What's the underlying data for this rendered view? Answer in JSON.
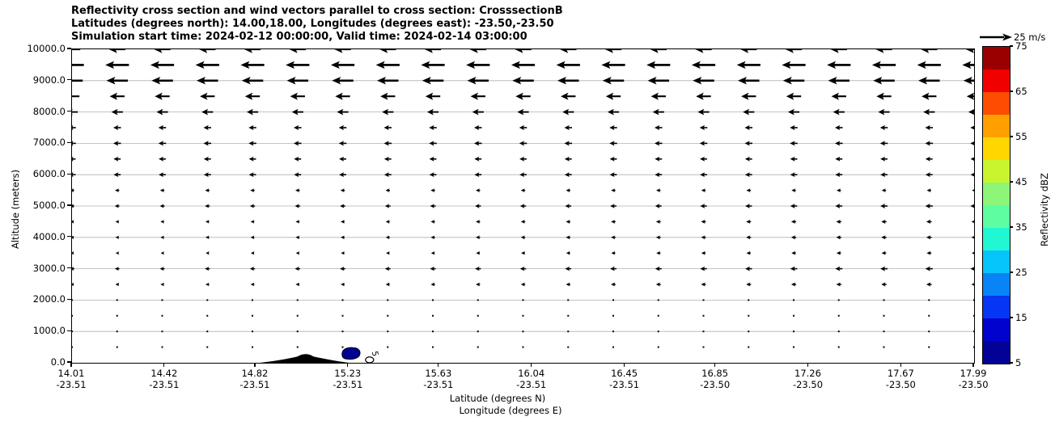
{
  "figure": {
    "title_line1": "Reflectivity cross section and wind vectors parallel to cross section: CrosssectionB",
    "title_line2": "Latitudes (degrees north): 14.00,18.00, Longitudes (degrees east): -23.50,-23.50",
    "title_line3": "Simulation start time: 2024-02-12 00:00:00, Valid time: 2024-02-14 03:00:00"
  },
  "y_axis": {
    "label": "Altitude (meters)",
    "min": 0,
    "max": 10000,
    "tick_labels": [
      "0.0",
      "1000.0",
      "2000.0",
      "3000.0",
      "4000.0",
      "5000.0",
      "6000.0",
      "7000.0",
      "8000.0",
      "9000.0",
      "10000.0"
    ]
  },
  "x_axis": {
    "label_line1": "Latitude (degrees N)",
    "label_line2": "Longitude (degrees E)",
    "ticks": [
      {
        "lat": "14.01",
        "lon": "-23.51"
      },
      {
        "lat": "14.42",
        "lon": "-23.51"
      },
      {
        "lat": "14.82",
        "lon": "-23.51"
      },
      {
        "lat": "15.23",
        "lon": "-23.51"
      },
      {
        "lat": "15.63",
        "lon": "-23.51"
      },
      {
        "lat": "16.04",
        "lon": "-23.51"
      },
      {
        "lat": "16.45",
        "lon": "-23.51"
      },
      {
        "lat": "16.85",
        "lon": "-23.50"
      },
      {
        "lat": "17.26",
        "lon": "-23.50"
      },
      {
        "lat": "17.67",
        "lon": "-23.50"
      },
      {
        "lat": "17.99",
        "lon": "-23.50"
      }
    ]
  },
  "colorbar": {
    "label": "Reflectivity dBZ",
    "min": 5,
    "max": 75,
    "tick_labels": [
      "5",
      "15",
      "25",
      "35",
      "45",
      "55",
      "65",
      "75"
    ],
    "colors_bottom_to_top": [
      "#020297",
      "#0202cf",
      "#0436f3",
      "#0884f6",
      "#06c5fa",
      "#21f8d3",
      "#5efda2",
      "#8df578",
      "#c9f52e",
      "#ffd600",
      "#ff9f00",
      "#fc4d00",
      "#f10000",
      "#9b0000"
    ]
  },
  "quiver_key": {
    "label": "25 m/s",
    "speed_ms": 25
  },
  "chart_data": {
    "type": "heatmap",
    "subtype": "vertical-cross-section with quiver wind vectors and filled reflectivity contours",
    "title": "Reflectivity cross section and wind vectors parallel to cross section: CrosssectionB",
    "x_range_latitude": [
      14.01,
      17.99
    ],
    "y_range_altitude_m": [
      0,
      10000
    ],
    "grid": "horizontal gridlines every 1000 m, light gray",
    "wind_vectors": {
      "direction": "toward decreasing latitude (leftward), horizontal",
      "reference_speed_ms": 25,
      "column_count": 21,
      "profile": [
        {
          "altitude_m": 500,
          "speed_ms": 0.5
        },
        {
          "altitude_m": 1000,
          "speed_ms": 0.5
        },
        {
          "altitude_m": 1500,
          "speed_ms": 0.5
        },
        {
          "altitude_m": 2000,
          "speed_ms": 0.7
        },
        {
          "altitude_m": 2500,
          "speed_ms": 4.0
        },
        {
          "altitude_m": 3000,
          "speed_ms": 5.5
        },
        {
          "altitude_m": 3500,
          "speed_ms": 3.5
        },
        {
          "altitude_m": 4000,
          "speed_ms": 4.0
        },
        {
          "altitude_m": 4500,
          "speed_ms": 4.0
        },
        {
          "altitude_m": 5000,
          "speed_ms": 5.5
        },
        {
          "altitude_m": 5500,
          "speed_ms": 4.0
        },
        {
          "altitude_m": 6000,
          "speed_ms": 6.5
        },
        {
          "altitude_m": 6500,
          "speed_ms": 6.5
        },
        {
          "altitude_m": 7000,
          "speed_ms": 7.0
        },
        {
          "altitude_m": 7500,
          "speed_ms": 7.0
        },
        {
          "altitude_m": 8000,
          "speed_ms": 10.5
        },
        {
          "altitude_m": 8500,
          "speed_ms": 13.5
        },
        {
          "altitude_m": 9000,
          "speed_ms": 19.5
        },
        {
          "altitude_m": 9500,
          "speed_ms": 21.5
        },
        {
          "altitude_m": 10000,
          "speed_ms": 15.0
        }
      ]
    },
    "reflectivity_regions": [
      {
        "lat_center": 15.28,
        "altitude_m": 300,
        "dbz_range": "5-10",
        "color": "#020297",
        "contour_label": "5"
      }
    ],
    "terrain": {
      "lat_start": 14.84,
      "lat_peak": 15.04,
      "lat_end": 15.23,
      "peak_altitude_m": 330,
      "color": "#000000"
    }
  }
}
